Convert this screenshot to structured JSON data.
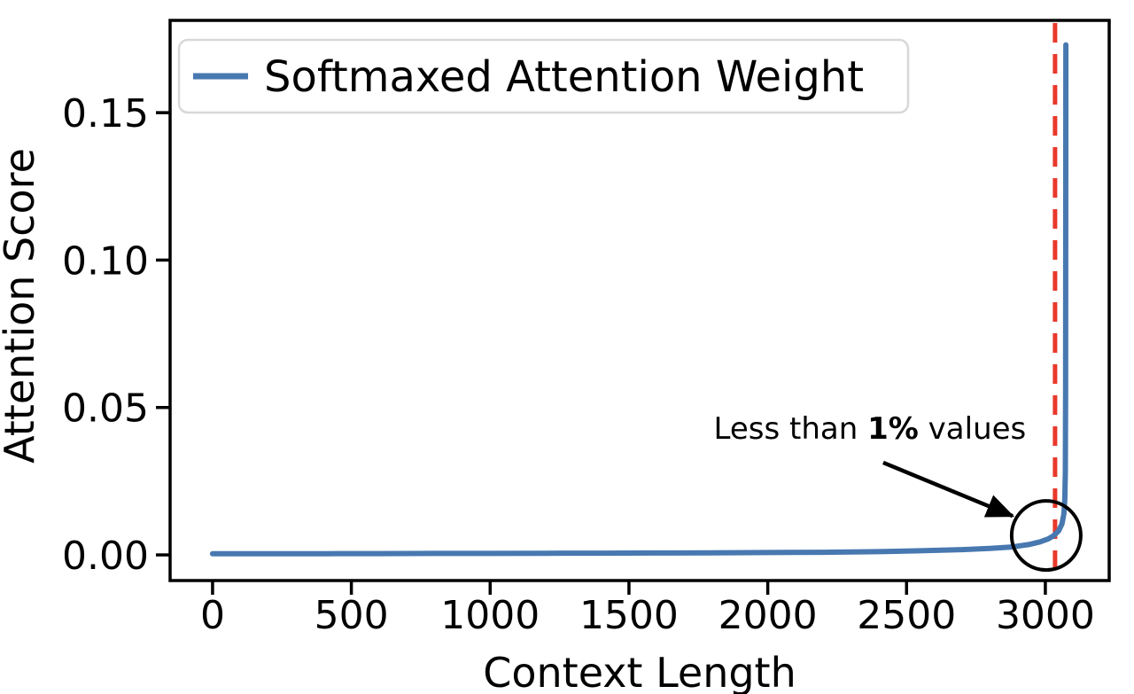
{
  "chart_data": {
    "type": "line",
    "title": "",
    "xlabel": "Context Length",
    "ylabel": "Attention Score",
    "xlim": [
      -153,
      3230
    ],
    "ylim": [
      -0.0087,
      0.1813
    ],
    "x_ticks": [
      0,
      500,
      1000,
      1500,
      2000,
      2500,
      3000
    ],
    "x_tick_labels": [
      "0",
      "500",
      "1000",
      "1500",
      "2000",
      "2500",
      "3000"
    ],
    "y_ticks": [
      0.0,
      0.05,
      0.1,
      0.15
    ],
    "y_tick_labels": [
      "0.00",
      "0.05",
      "0.10",
      "0.15"
    ],
    "grid": false,
    "legend": {
      "position": "upper left",
      "entries": [
        {
          "label": "Softmaxed Attention Weight",
          "color": "#4878b0"
        }
      ]
    },
    "series": [
      {
        "name": "Softmaxed Attention Weight",
        "color": "#4878b0",
        "points": [
          [
            0,
            0.0004
          ],
          [
            200,
            0.0004
          ],
          [
            400,
            0.0004
          ],
          [
            600,
            0.00045
          ],
          [
            800,
            0.0005
          ],
          [
            1000,
            0.0005
          ],
          [
            1200,
            0.00055
          ],
          [
            1400,
            0.0006
          ],
          [
            1600,
            0.00065
          ],
          [
            1800,
            0.0007
          ],
          [
            2000,
            0.0008
          ],
          [
            2200,
            0.0009
          ],
          [
            2400,
            0.0011
          ],
          [
            2550,
            0.0014
          ],
          [
            2700,
            0.0018
          ],
          [
            2800,
            0.0022
          ],
          [
            2880,
            0.0027
          ],
          [
            2940,
            0.0035
          ],
          [
            2980,
            0.0044
          ],
          [
            3010,
            0.0054
          ],
          [
            3030,
            0.0065
          ],
          [
            3048,
            0.0082
          ],
          [
            3060,
            0.0105
          ],
          [
            3067,
            0.014
          ],
          [
            3070,
            0.019
          ],
          [
            3072,
            0.028
          ],
          [
            3073,
            0.055
          ],
          [
            3074,
            0.173
          ]
        ]
      }
    ],
    "vline": {
      "x": 3035,
      "color": "#e8392b",
      "style": "dashed"
    },
    "annotations": {
      "label": {
        "text_parts": [
          "Less than ",
          "1%",
          " values"
        ],
        "x": 2368,
        "y": 0.043
      },
      "arrow": {
        "from": [
          2416,
          0.0313
        ],
        "to": [
          2882,
          0.0132
        ]
      },
      "circle": {
        "x": 3003,
        "y": 0.0066,
        "radius_px": 39
      }
    }
  }
}
